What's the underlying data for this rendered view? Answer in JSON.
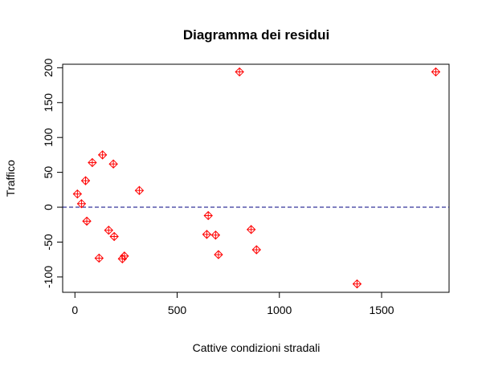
{
  "chart_data": {
    "type": "scatter",
    "title": "Diagramma dei residui",
    "xlabel": "Cattive condizioni stradali",
    "ylabel": "Traffico",
    "xlim": [
      -60,
      1830
    ],
    "ylim": [
      -122,
      205
    ],
    "x_ticks": [
      0,
      500,
      1000,
      1500
    ],
    "y_ticks": [
      -100,
      -50,
      0,
      50,
      100,
      150,
      200
    ],
    "grid": false,
    "reference_line": {
      "y": 0,
      "style": "dashed",
      "color": "#000080"
    },
    "marker": {
      "shape": "diamond-plus",
      "color": "#ff0000"
    },
    "points": [
      {
        "x": 12,
        "y": 19
      },
      {
        "x": 32,
        "y": 5
      },
      {
        "x": 52,
        "y": 38
      },
      {
        "x": 58,
        "y": -20
      },
      {
        "x": 85,
        "y": 64
      },
      {
        "x": 118,
        "y": -73
      },
      {
        "x": 135,
        "y": 75
      },
      {
        "x": 165,
        "y": -33
      },
      {
        "x": 188,
        "y": 62
      },
      {
        "x": 192,
        "y": -42
      },
      {
        "x": 232,
        "y": -74
      },
      {
        "x": 242,
        "y": -70
      },
      {
        "x": 315,
        "y": 24
      },
      {
        "x": 645,
        "y": -39
      },
      {
        "x": 652,
        "y": -12
      },
      {
        "x": 688,
        "y": -40
      },
      {
        "x": 702,
        "y": -68
      },
      {
        "x": 805,
        "y": 194
      },
      {
        "x": 862,
        "y": -32
      },
      {
        "x": 888,
        "y": -61
      },
      {
        "x": 1380,
        "y": -110
      },
      {
        "x": 1765,
        "y": 194
      }
    ]
  }
}
